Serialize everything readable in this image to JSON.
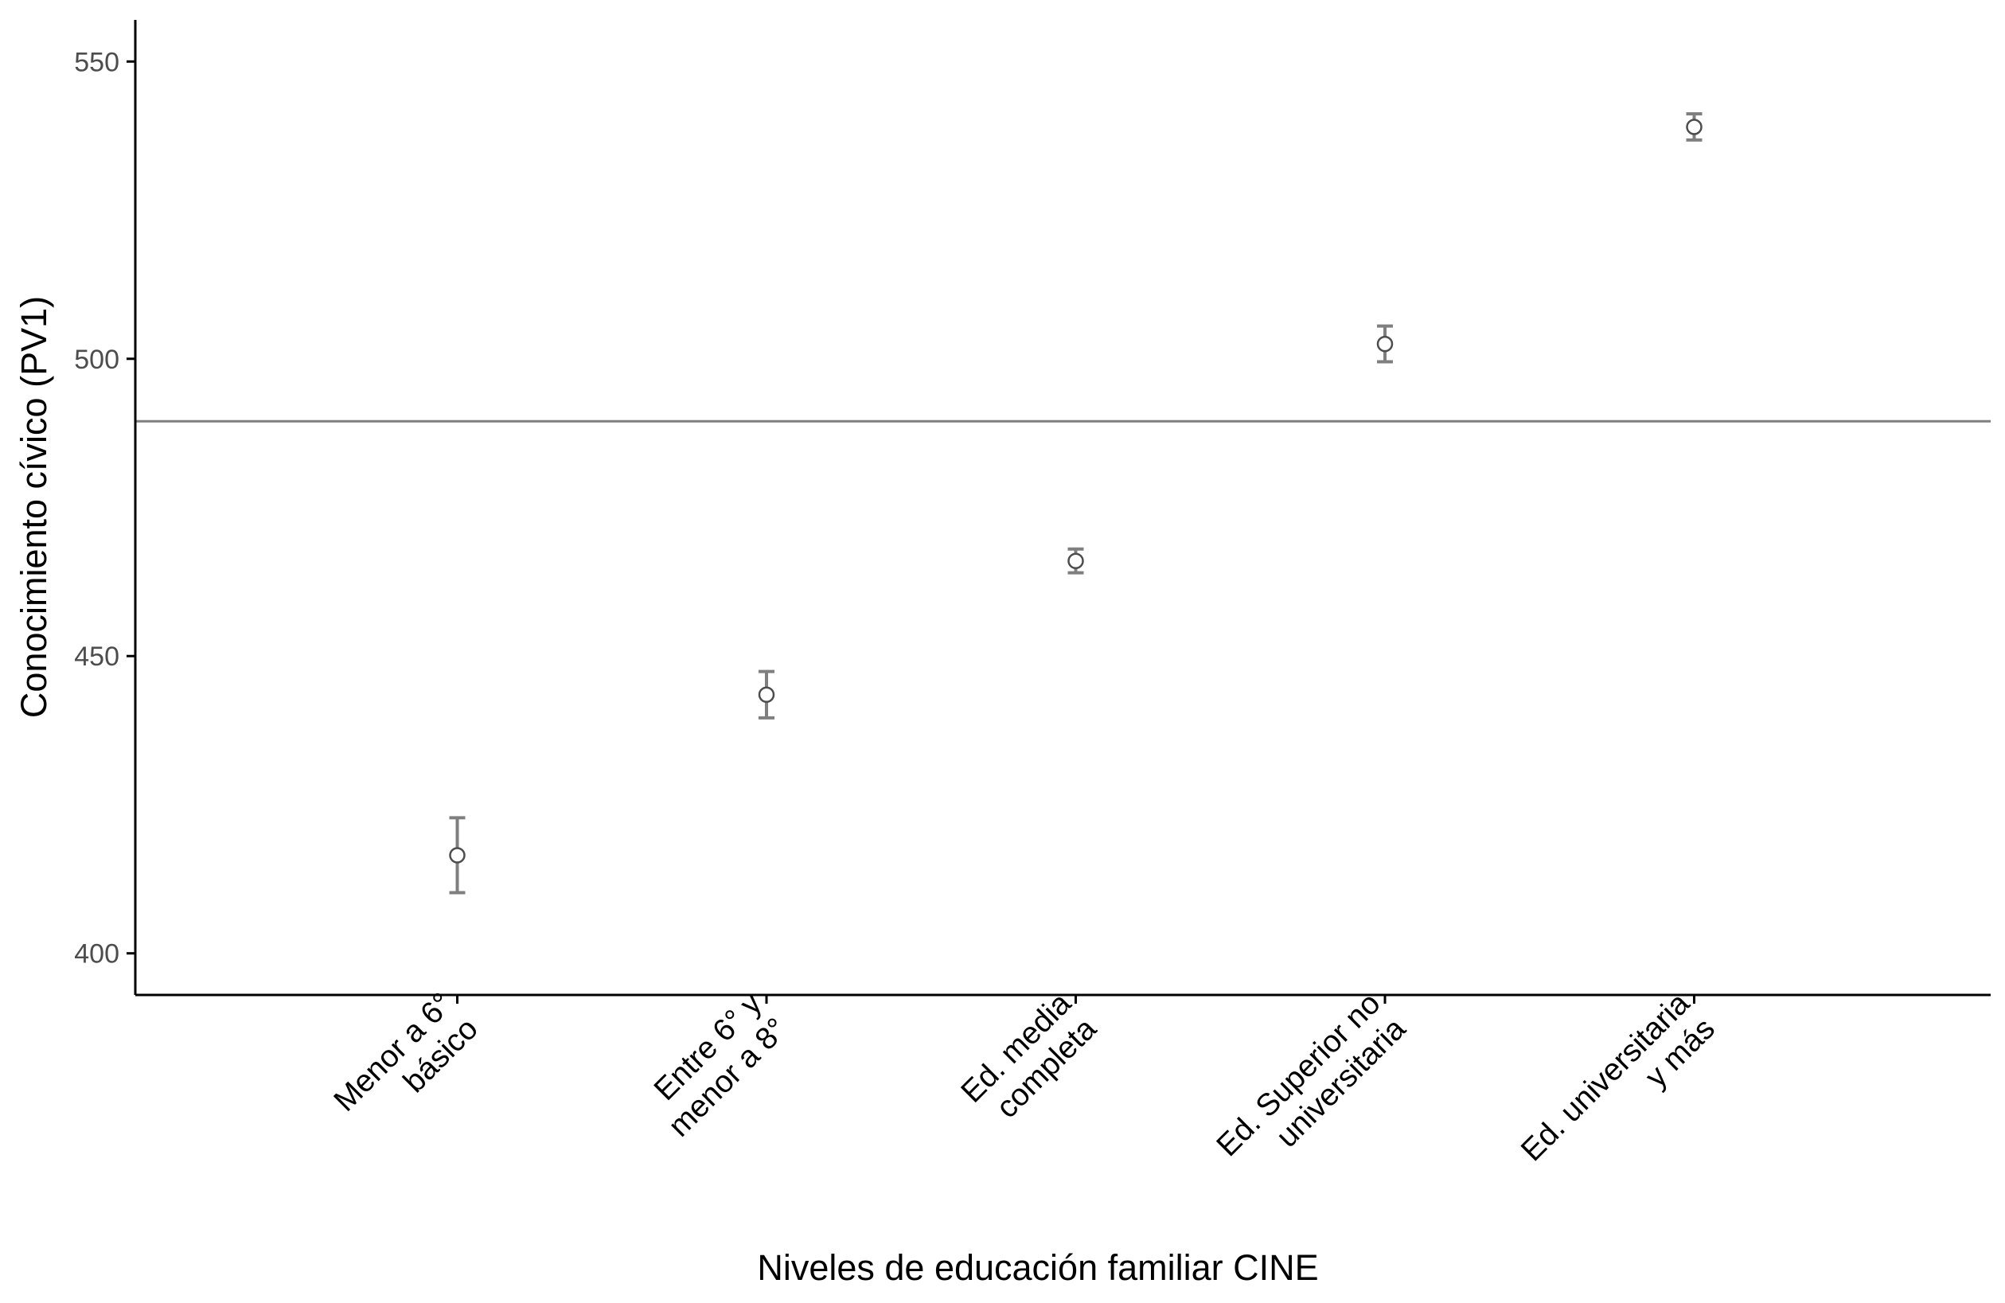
{
  "chart_data": {
    "type": "scatter",
    "xlabel": "Niveles de educación familiar CINE",
    "ylabel": "Conocimiento cívico (PV1)",
    "categories": [
      [
        "Menor a 6°",
        "básico"
      ],
      [
        "Entre 6° y",
        "menor a 8°"
      ],
      [
        "Ed. media",
        "completa"
      ],
      [
        "Ed. Superior no",
        "universitaria"
      ],
      [
        "Ed. universitaria",
        "y más"
      ]
    ],
    "points": [
      {
        "value": 416.5,
        "lower": 410.2,
        "upper": 422.8
      },
      {
        "value": 443.5,
        "lower": 439.6,
        "upper": 447.4
      },
      {
        "value": 466.0,
        "lower": 464.0,
        "upper": 468.0
      },
      {
        "value": 502.5,
        "lower": 499.5,
        "upper": 505.5
      },
      {
        "value": 539.0,
        "lower": 536.8,
        "upper": 541.2
      }
    ],
    "reference_line": 489.5,
    "ylim": [
      393,
      557
    ],
    "yticks": [
      400,
      450,
      500,
      550
    ],
    "grid": false,
    "colors": {
      "errorbar": "#7f7f7f",
      "point_fill": "#ffffff",
      "point_stroke": "#4d4d4d",
      "reference_line": "#7f7f7f",
      "axis": "#000000"
    }
  }
}
